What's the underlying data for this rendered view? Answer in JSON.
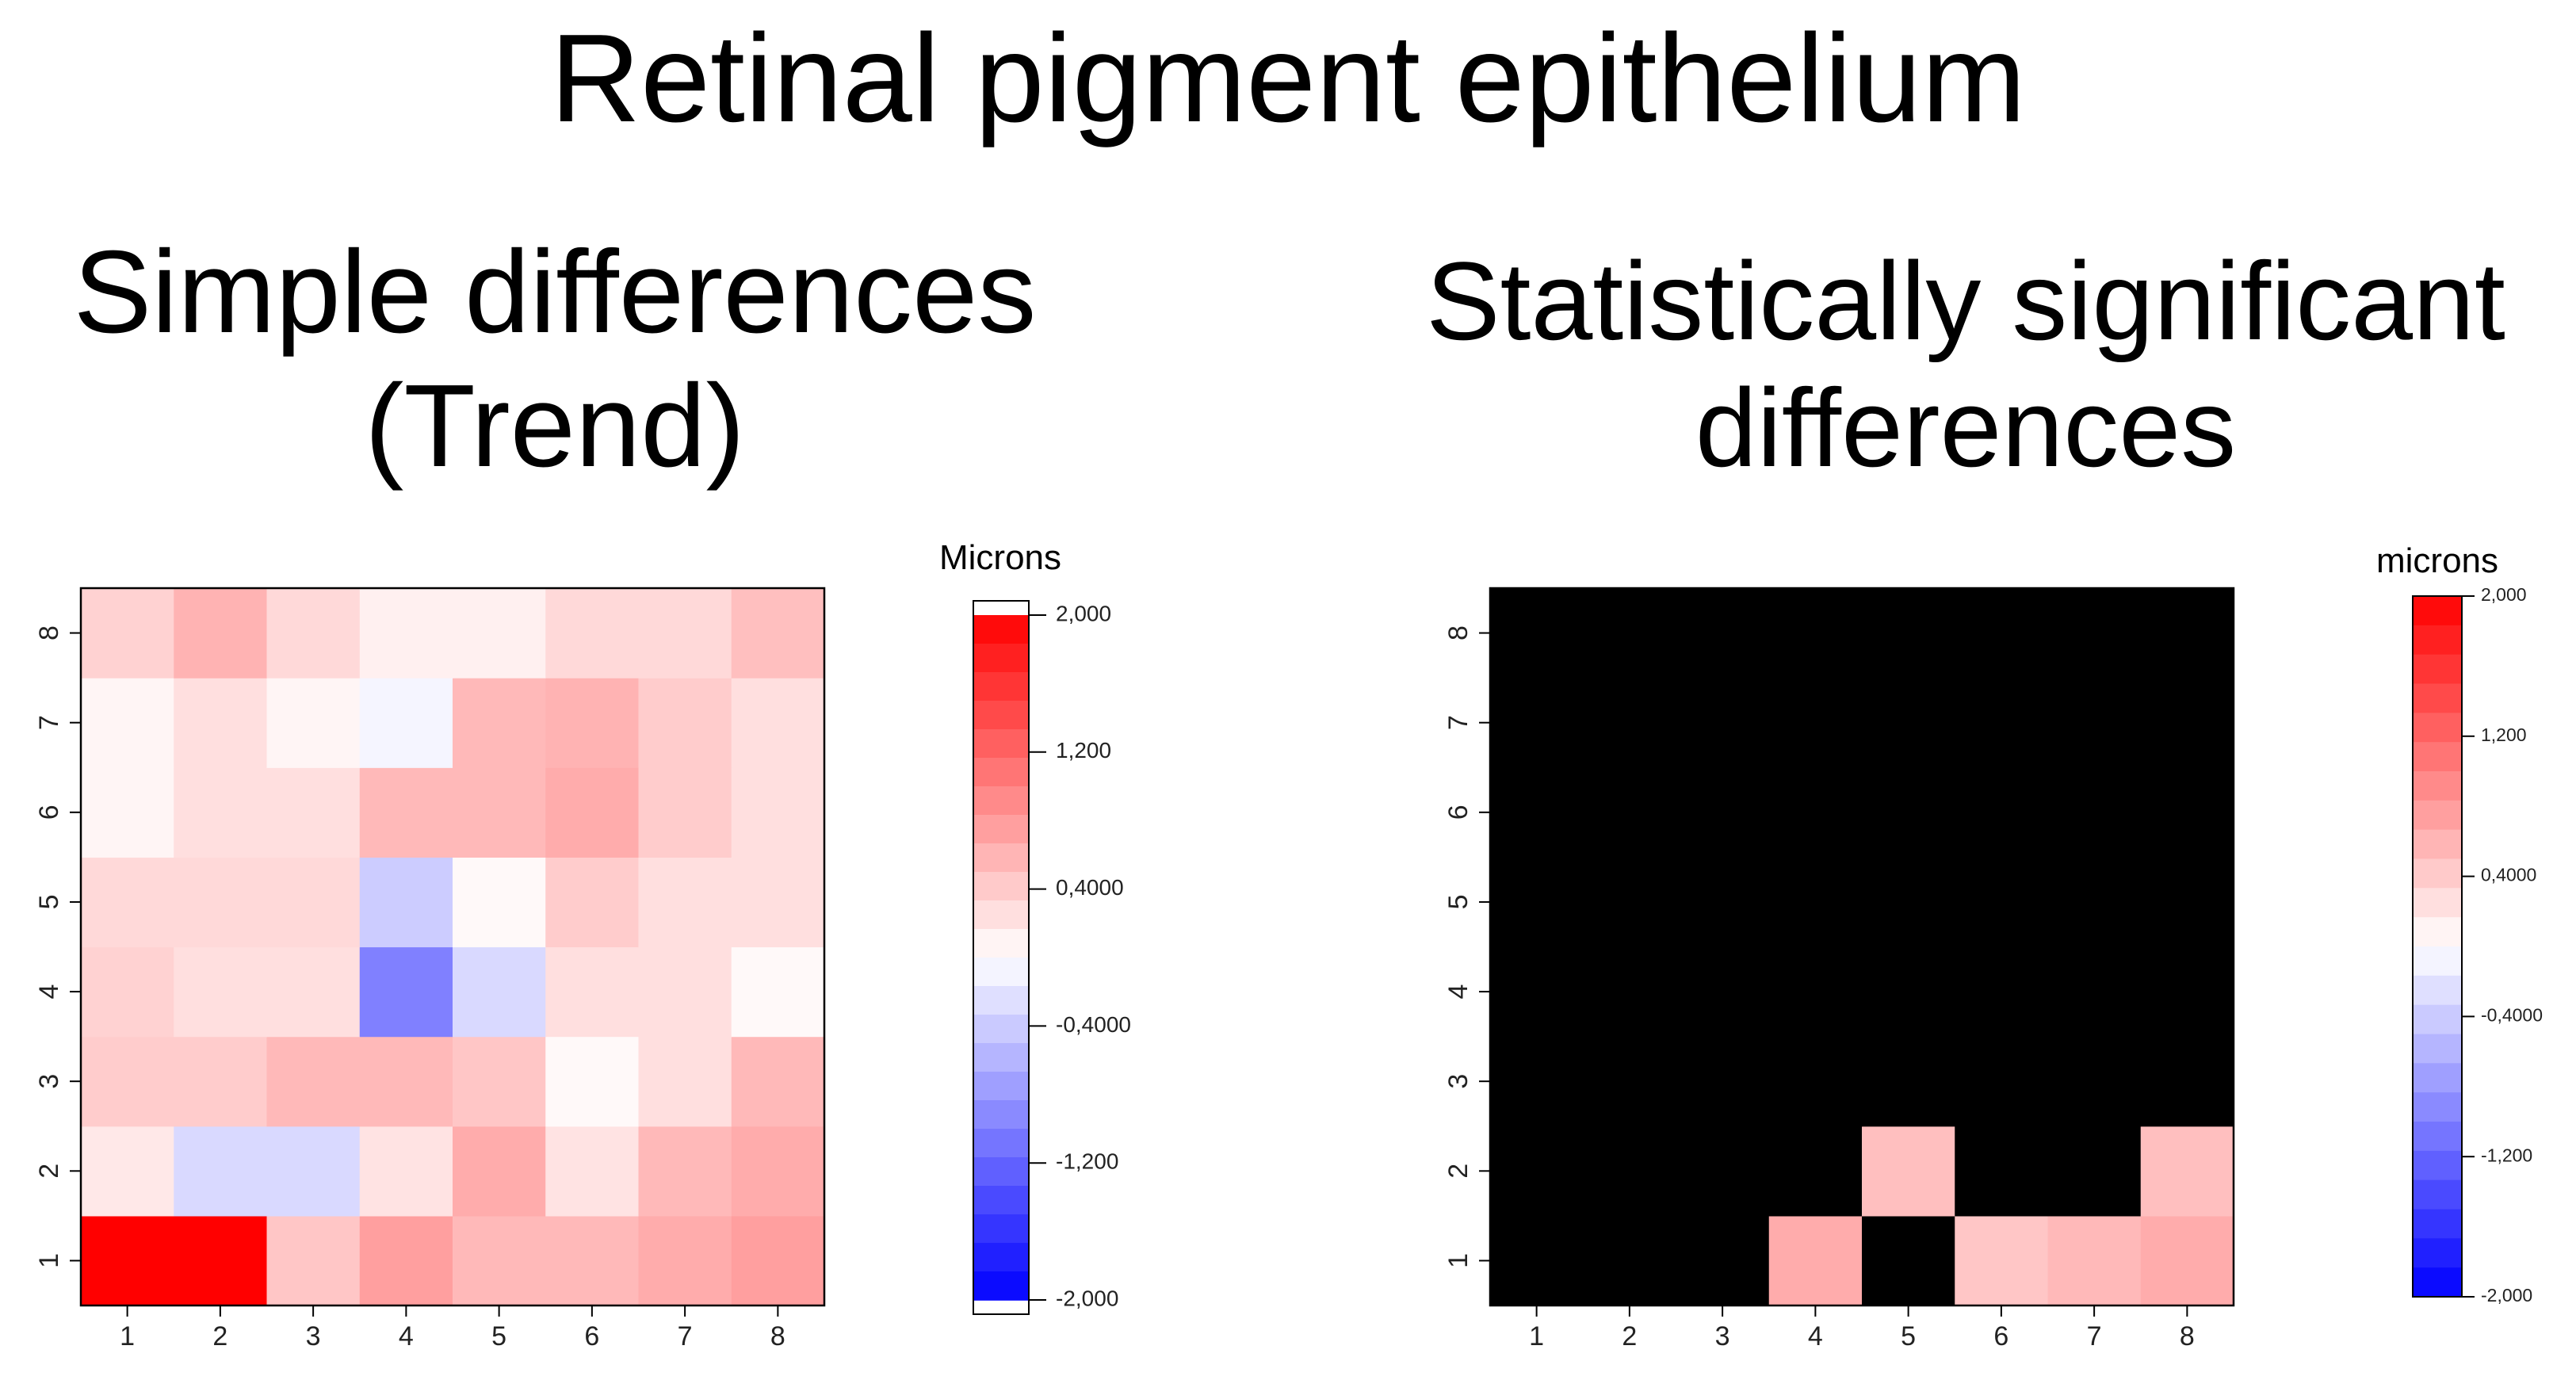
{
  "title": "Retinal pigment epithelium",
  "chart_data": [
    {
      "type": "heatmap",
      "title_line1": "Simple differences",
      "title_line2": "(Trend)",
      "x_categories": [
        "1",
        "2",
        "3",
        "4",
        "5",
        "6",
        "7",
        "8"
      ],
      "y_categories": [
        "1",
        "2",
        "3",
        "4",
        "5",
        "6",
        "7",
        "8"
      ],
      "values": [
        [
          2.0,
          2.0,
          0.45,
          0.75,
          0.55,
          0.55,
          0.65,
          0.75
        ],
        [
          0.18,
          -0.3,
          -0.3,
          0.22,
          0.65,
          0.22,
          0.55,
          0.65
        ],
        [
          0.4,
          0.4,
          0.55,
          0.55,
          0.45,
          0.05,
          0.25,
          0.55
        ],
        [
          0.35,
          0.25,
          0.25,
          -1.0,
          -0.3,
          0.25,
          0.25,
          0.05
        ],
        [
          0.3,
          0.3,
          0.3,
          -0.4,
          0.05,
          0.4,
          0.25,
          0.25
        ],
        [
          0.08,
          0.25,
          0.25,
          0.55,
          0.55,
          0.65,
          0.4,
          0.25
        ],
        [
          0.08,
          0.25,
          0.08,
          -0.08,
          0.55,
          0.6,
          0.4,
          0.25
        ],
        [
          0.35,
          0.6,
          0.3,
          0.12,
          0.12,
          0.3,
          0.3,
          0.5
        ]
      ],
      "colorbar": {
        "label": "Microns",
        "min": -2.0,
        "max": 2.0,
        "ticks": [
          2.0,
          1.2,
          0.4,
          -0.4,
          -1.2,
          -2.0
        ],
        "tick_labels": [
          "2,000",
          "1,200",
          "0,4000",
          "-0,4000",
          "-1,200",
          "-2,000"
        ]
      }
    },
    {
      "type": "heatmap",
      "title_line1": "Statistically significant",
      "title_line2": "differences",
      "x_categories": [
        "1",
        "2",
        "3",
        "4",
        "5",
        "6",
        "7",
        "8"
      ],
      "y_categories": [
        "1",
        "2",
        "3",
        "4",
        "5",
        "6",
        "7",
        "8"
      ],
      "nonsignificant_color": "#000000",
      "values": [
        [
          null,
          null,
          null,
          0.65,
          null,
          0.45,
          0.55,
          0.65
        ],
        [
          null,
          null,
          null,
          null,
          0.5,
          null,
          null,
          0.5
        ],
        [
          null,
          null,
          null,
          null,
          null,
          null,
          null,
          null
        ],
        [
          null,
          null,
          null,
          null,
          null,
          null,
          null,
          null
        ],
        [
          null,
          null,
          null,
          null,
          null,
          null,
          null,
          null
        ],
        [
          null,
          null,
          null,
          null,
          null,
          null,
          null,
          null
        ],
        [
          null,
          null,
          null,
          null,
          null,
          null,
          null,
          null
        ],
        [
          null,
          null,
          null,
          null,
          null,
          null,
          null,
          null
        ]
      ],
      "colorbar": {
        "label": "microns",
        "min": -2.0,
        "max": 2.0,
        "ticks": [
          2.0,
          1.2,
          0.4,
          -0.4,
          -1.2,
          -2.0
        ],
        "tick_labels": [
          "2,000",
          "1,200",
          "0,4000",
          "-0,4000",
          "-1,200",
          "-2,000"
        ]
      }
    }
  ]
}
